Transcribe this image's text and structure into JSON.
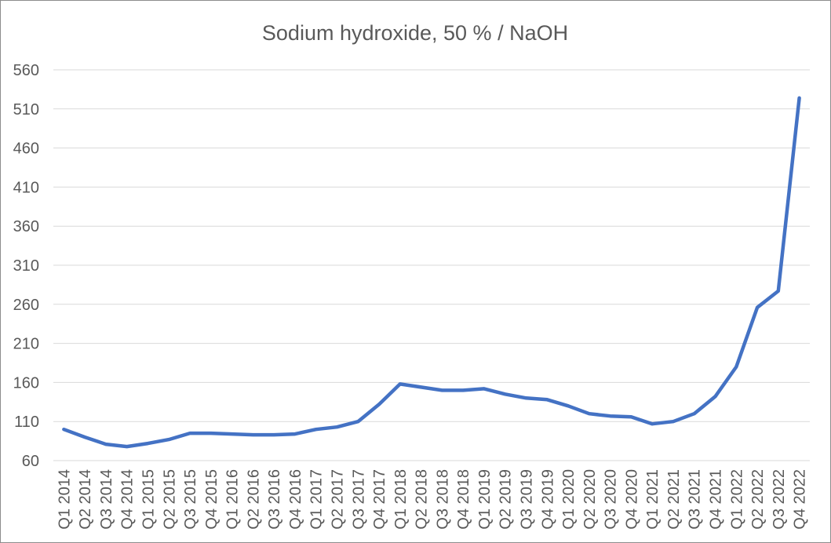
{
  "chart_data": {
    "type": "line",
    "title": "Sodium hydroxide, 50 % / NaOH",
    "categories": [
      "Q1 2014",
      "Q2 2014",
      "Q3 2014",
      "Q4 2014",
      "Q1 2015",
      "Q2 2015",
      "Q3 2015",
      "Q4 2015",
      "Q1 2016",
      "Q2 2016",
      "Q3 2016",
      "Q4 2016",
      "Q1 2017",
      "Q2 2017",
      "Q3 2017",
      "Q4 2017",
      "Q1 2018",
      "Q2 2018",
      "Q3 2018",
      "Q4 2018",
      "Q1 2019",
      "Q2 2019",
      "Q3 2019",
      "Q4 2019",
      "Q1 2020",
      "Q2 2020",
      "Q3 2020",
      "Q4 2020",
      "Q1 2021",
      "Q2 2021",
      "Q3 2021",
      "Q4 2021",
      "Q1 2022",
      "Q2 2022",
      "Q3 2022",
      "Q4 2022"
    ],
    "values": [
      100,
      90,
      81,
      78,
      82,
      87,
      95,
      95,
      94,
      93,
      93,
      94,
      100,
      103,
      110,
      132,
      158,
      154,
      150,
      150,
      152,
      145,
      140,
      138,
      130,
      120,
      117,
      116,
      107,
      110,
      120,
      142,
      180,
      256,
      277,
      524
    ],
    "xlabel": "",
    "ylabel": "",
    "ylim": [
      60,
      560
    ],
    "yticks": [
      60,
      110,
      160,
      210,
      260,
      310,
      360,
      410,
      460,
      510,
      560
    ],
    "ytick_interval": 50,
    "grid": "horizontal",
    "legend": "none",
    "x_label_rotation": -90,
    "line_color": "#4472C4",
    "gridline_color": "#D9D9D9",
    "label_color": "#595959",
    "title_color": "#595959",
    "border_color": "#8C8C8C"
  }
}
